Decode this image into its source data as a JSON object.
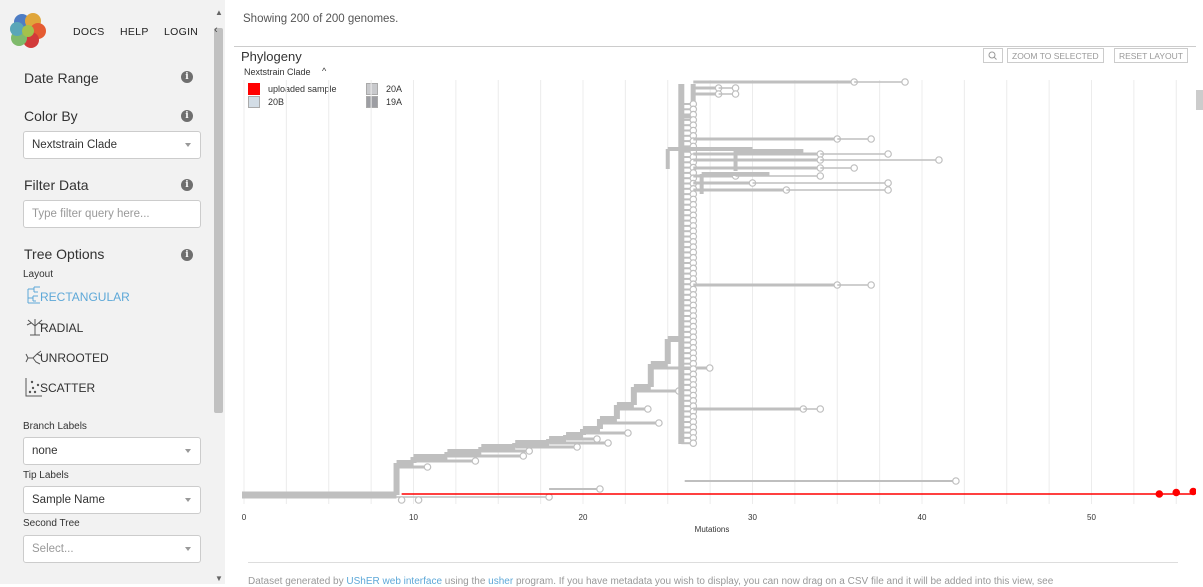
{
  "nav": {
    "docs": "DOCS",
    "help": "HELP",
    "login": "LOGIN"
  },
  "sidebar": {
    "date_range": "Date Range",
    "color_by": {
      "label": "Color By",
      "value": "Nextstrain Clade"
    },
    "filter": {
      "label": "Filter Data",
      "placeholder": "Type filter query here..."
    },
    "tree_options": "Tree Options",
    "layout_label": "Layout",
    "layouts": [
      {
        "label": "RECTANGULAR",
        "icon": "rectangular-tree-icon",
        "selected": true
      },
      {
        "label": "RADIAL",
        "icon": "radial-tree-icon",
        "selected": false
      },
      {
        "label": "UNROOTED",
        "icon": "unrooted-tree-icon",
        "selected": false
      },
      {
        "label": "SCATTER",
        "icon": "scatter-icon",
        "selected": false
      }
    ],
    "branch_labels": {
      "label": "Branch Labels",
      "value": "none"
    },
    "tip_labels": {
      "label": "Tip Labels",
      "value": "Sample Name"
    },
    "second_tree": {
      "label": "Second Tree",
      "placeholder": "Select..."
    }
  },
  "main": {
    "status": "Showing 200 of 200 genomes.",
    "panel_title": "Phylogeny",
    "buttons": {
      "zoom_selected": "ZOOM TO SELECTED",
      "reset_layout": "RESET LAYOUT"
    },
    "legend": {
      "title": "Nextstrain Clade",
      "items": [
        {
          "label": "uploaded sample",
          "color": "#ff0000"
        },
        {
          "label": "20B",
          "color": "#d3dde6"
        },
        {
          "label": "20A",
          "color": "#c8c9cc"
        },
        {
          "label": "19A",
          "color": "#9d9ea3"
        }
      ]
    },
    "x_axis": {
      "label": "Mutations",
      "ticks": [
        "0",
        "10",
        "20",
        "30",
        "40",
        "50"
      ]
    },
    "footer": {
      "prefix": "Dataset generated by ",
      "link1": "UShER web interface",
      "middle": " using the ",
      "link2": "usher",
      "suffix": " program. If you have metadata you wish to display, you can now drag on a CSV file and it will be added into this view, see"
    }
  },
  "colors": {
    "branch": "#bfbfbf",
    "highlight": "#ff0000",
    "accent": "#5da8d8"
  }
}
